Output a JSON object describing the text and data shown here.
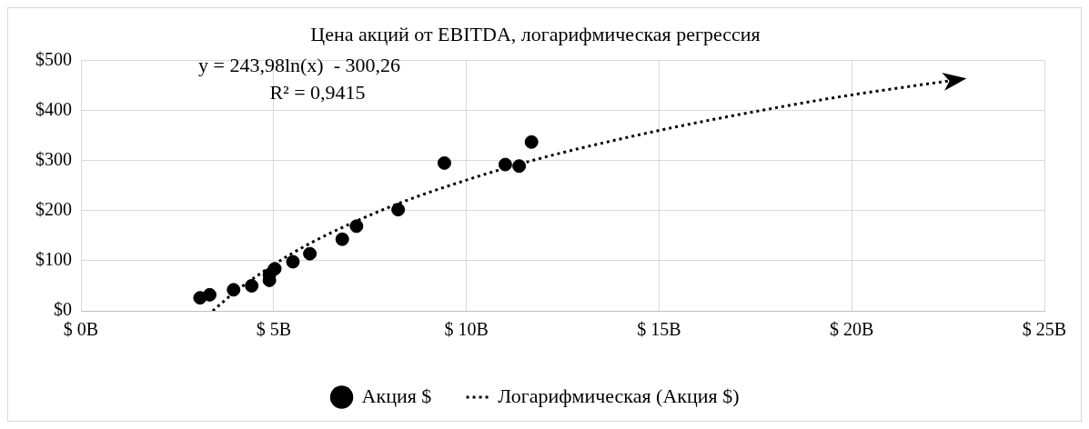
{
  "chart_data": {
    "type": "scatter",
    "title": "Цена акций от EBITDA, логарифмическая регрессия",
    "annotations": [
      "y = 243,98ln(x)  - 300,26",
      "R² = 0,9415"
    ],
    "xlim": [
      0,
      25
    ],
    "xticks": [
      {
        "value": 0,
        "label": "$ 0B"
      },
      {
        "value": 5,
        "label": "$ 5B"
      },
      {
        "value": 10,
        "label": "$ 10B"
      },
      {
        "value": 15,
        "label": "$ 15B"
      },
      {
        "value": 20,
        "label": "$ 20B"
      },
      {
        "value": 25,
        "label": "$ 25B"
      }
    ],
    "ylim": [
      0,
      500
    ],
    "yticks": [
      {
        "value": 0,
        "label": "$0"
      },
      {
        "value": 100,
        "label": "$100"
      },
      {
        "value": 200,
        "label": "$200"
      },
      {
        "value": 300,
        "label": "$300"
      },
      {
        "value": 400,
        "label": "$400"
      },
      {
        "value": 500,
        "label": "$500"
      }
    ],
    "grid": true,
    "legend": "bottom",
    "series": [
      {
        "name": "Акция $",
        "type": "scatter",
        "color": "#000000",
        "marker": "circle",
        "x": [
          3.09,
          3.34,
          3.96,
          4.43,
          4.89,
          4.89,
          5.03,
          5.5,
          5.94,
          6.78,
          7.15,
          8.23,
          9.43,
          11.01,
          11.37,
          11.69
        ],
        "values": [
          26,
          32,
          42,
          50,
          61,
          72,
          84,
          98,
          114,
          143,
          169,
          202,
          295,
          292,
          289,
          337
        ]
      },
      {
        "name": "Логарифмическая (Акция $)",
        "type": "line",
        "color": "#000000",
        "marker": "none",
        "line_style": "dotted",
        "x": [
          3.42,
          4,
          5,
          6,
          8,
          10,
          12,
          15,
          18,
          20,
          22.7
        ],
        "values": [
          0,
          38,
          92,
          137,
          207,
          261,
          306,
          360,
          405,
          431,
          461
        ]
      }
    ]
  }
}
